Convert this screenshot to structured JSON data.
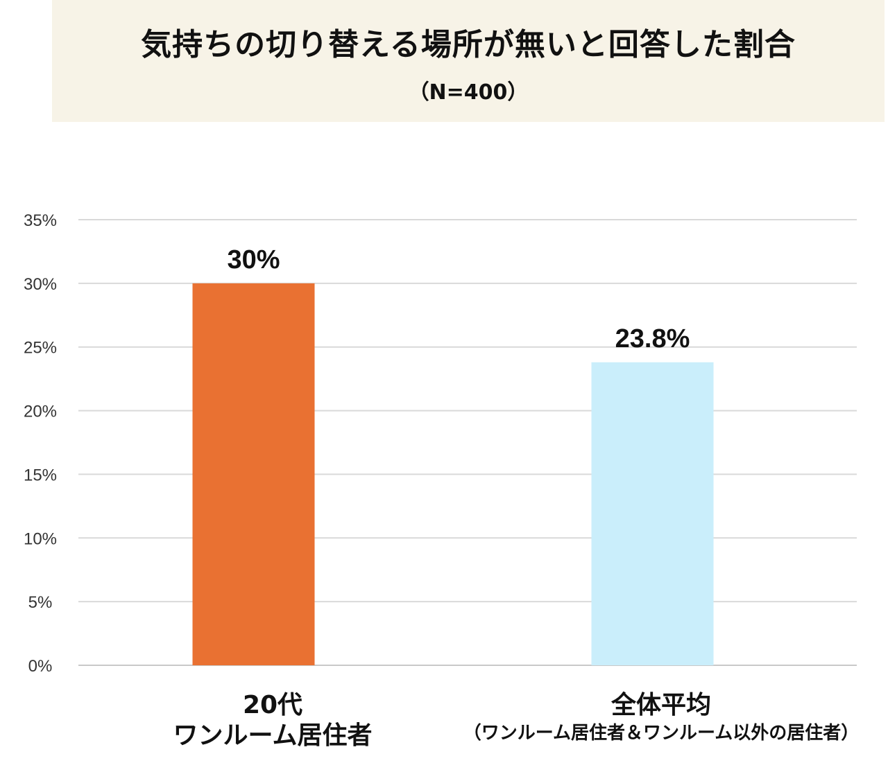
{
  "chart_data": {
    "type": "bar",
    "title": "気持ちの切り替える場所が無いと回答した割合",
    "subtitle": "（N=400）",
    "categories": [
      {
        "line1": "20代",
        "line2": "ワンルーム居住者"
      },
      {
        "line1": "全体平均",
        "line2": "（ワンルーム居住者＆ワンルーム以外の居住者）"
      }
    ],
    "values": [
      30,
      23.8
    ],
    "data_labels": [
      "30%",
      "23.8%"
    ],
    "colors": [
      "#e97132",
      "#caeefb"
    ],
    "ylim": [
      0,
      35
    ],
    "yticks": [
      "0%",
      "5%",
      "10%",
      "15%",
      "20%",
      "25%",
      "30%",
      "35%"
    ],
    "ytick_values": [
      0,
      5,
      10,
      15,
      20,
      25,
      30,
      35
    ],
    "grid": true,
    "legend": "none"
  }
}
